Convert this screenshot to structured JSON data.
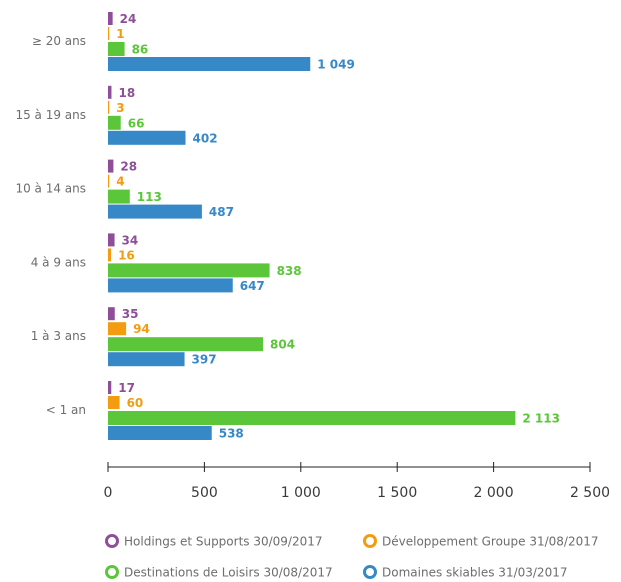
{
  "chart_data": {
    "type": "bar",
    "orientation": "horizontal",
    "categories": [
      "≥ 20 ans",
      "15 à 19 ans",
      "10 à 14 ans",
      "4 à 9 ans",
      "1 à 3 ans",
      "< 1 an"
    ],
    "series": [
      {
        "name": "Holdings et Supports 30/09/2017",
        "color": "#8e4f98",
        "values": [
          24,
          18,
          28,
          34,
          35,
          17
        ],
        "labels": [
          "24",
          "18",
          "28",
          "34",
          "35",
          "17"
        ]
      },
      {
        "name": "Développement Groupe 31/08/2017",
        "color": "#f39c12",
        "values": [
          1,
          3,
          4,
          16,
          94,
          60
        ],
        "labels": [
          "1",
          "3",
          "4",
          "16",
          "94",
          "60"
        ]
      },
      {
        "name": "Destinations de Loisirs 30/08/2017",
        "color": "#5bc63a",
        "values": [
          86,
          66,
          113,
          838,
          804,
          2113
        ],
        "labels": [
          "86",
          "66",
          "113",
          "838",
          "804",
          "2 113"
        ]
      },
      {
        "name": "Domaines skiables 31/03/2017",
        "color": "#3688c6",
        "values": [
          1049,
          402,
          487,
          647,
          397,
          538
        ],
        "labels": [
          "1 049",
          "402",
          "487",
          "647",
          "397",
          "538"
        ]
      }
    ],
    "xlim": [
      0,
      2500
    ],
    "xticks": [
      0,
      500,
      1000,
      1500,
      2000,
      2500
    ],
    "xtick_labels": [
      "0",
      "500",
      "1 000",
      "1 500",
      "2 000",
      "2 500"
    ],
    "grid": false,
    "legend_position": "bottom"
  }
}
